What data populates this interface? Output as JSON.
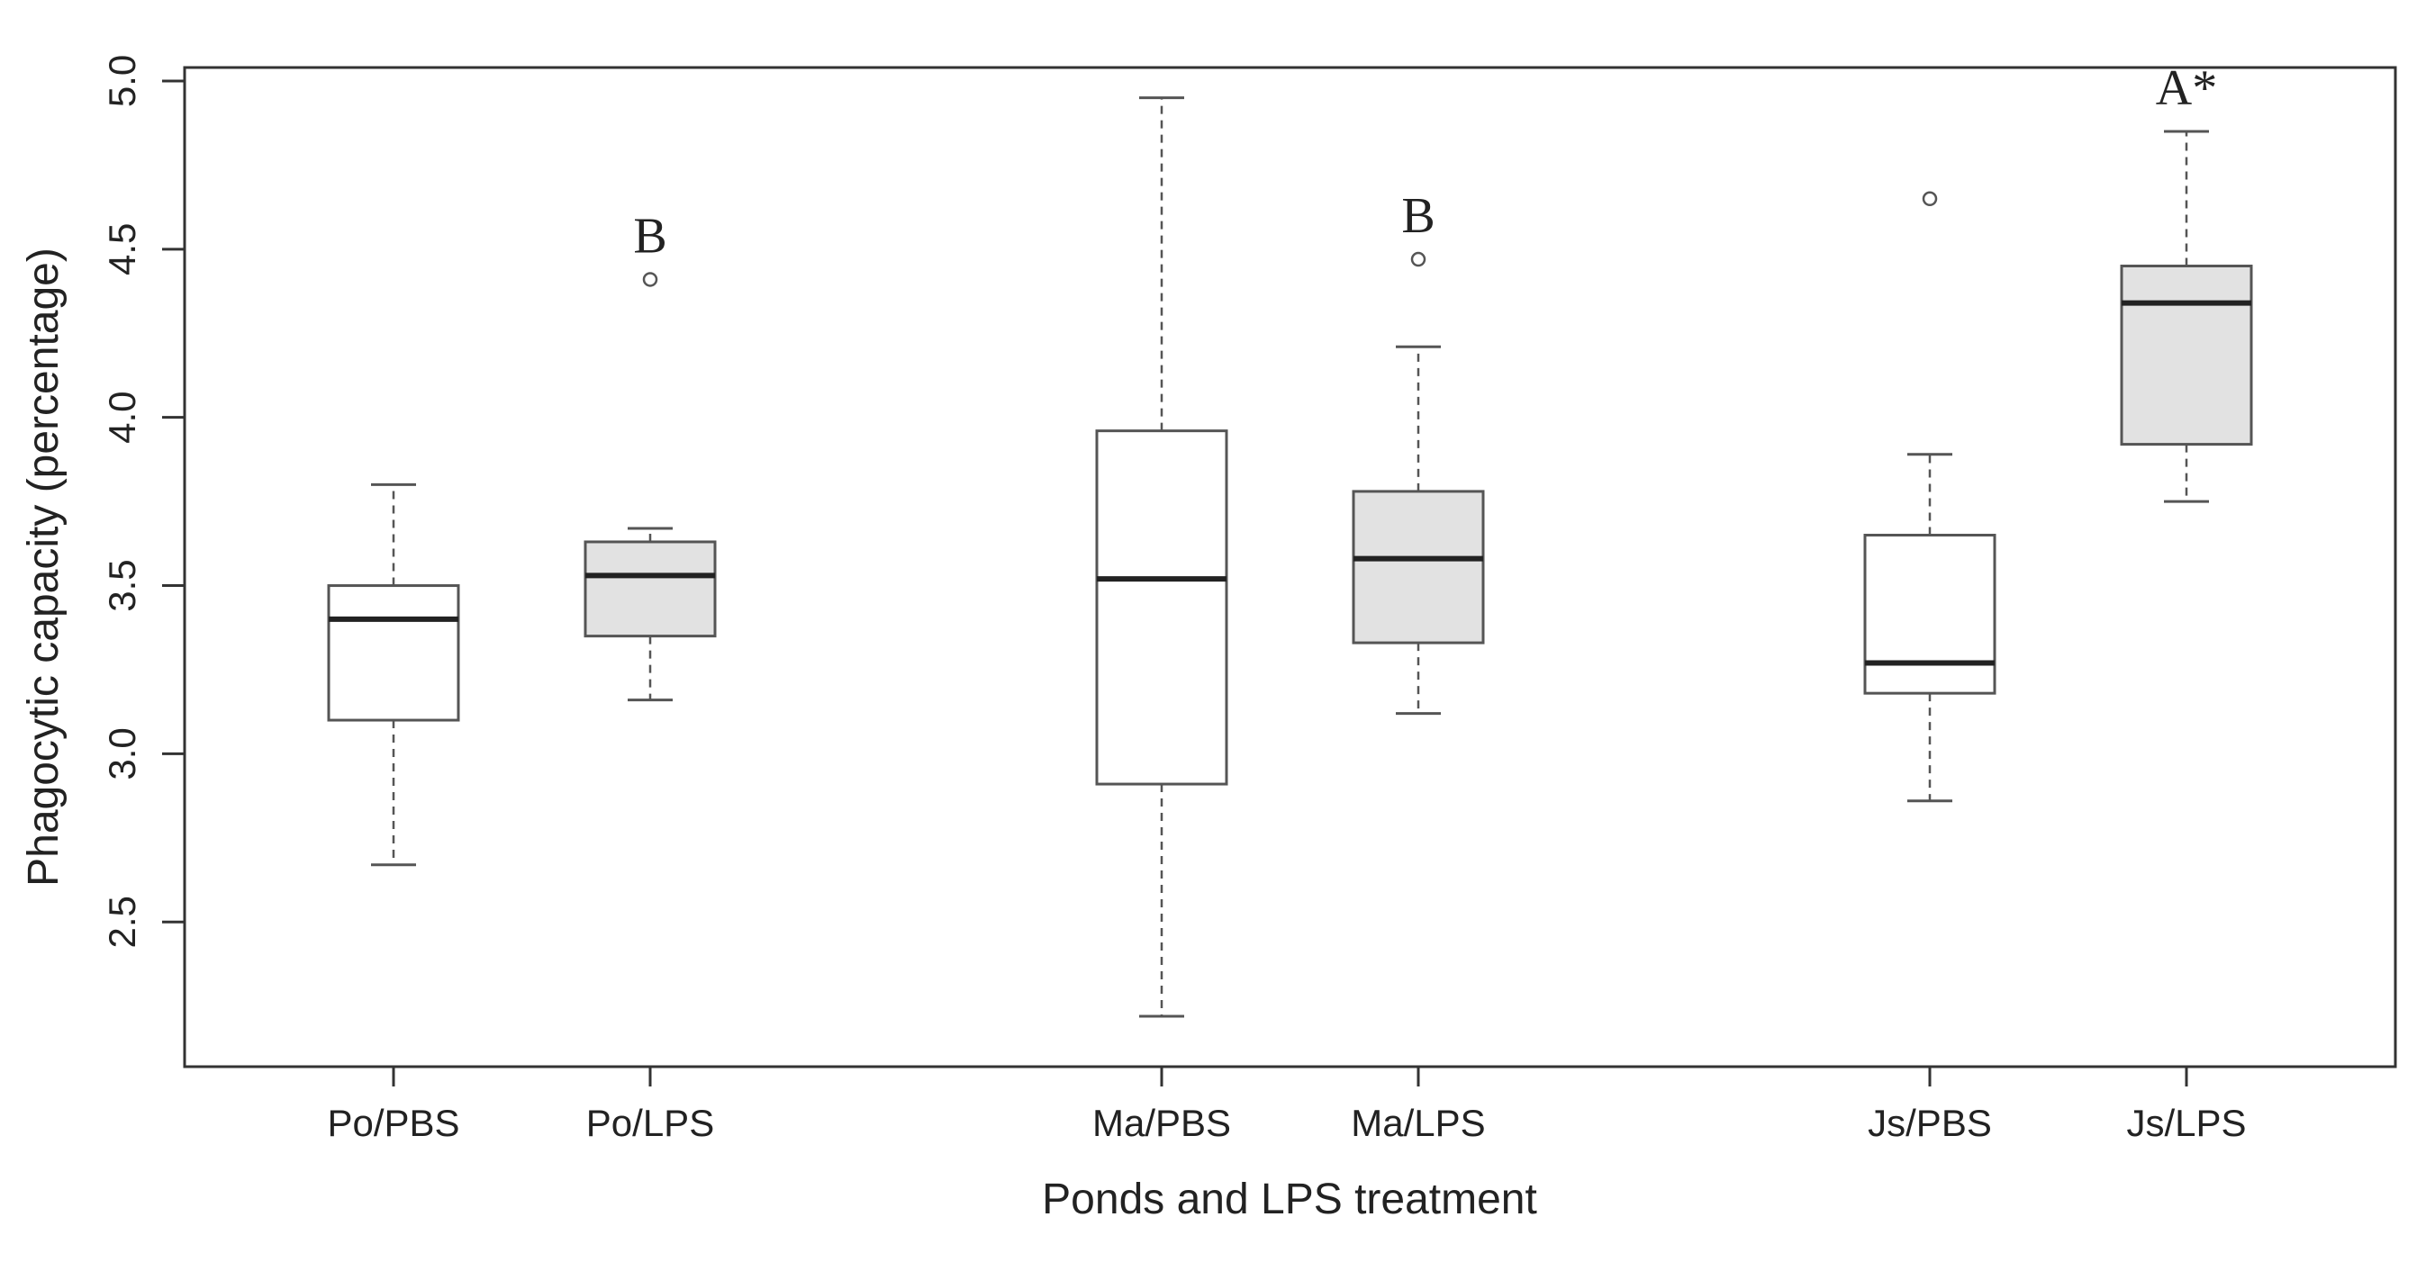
{
  "chart_data": {
    "type": "boxplot",
    "title": "",
    "xlabel": "Ponds and LPS treatment",
    "ylabel": "Phagocytic capacity (percentage)",
    "ylim": [
      2.07,
      5.04
    ],
    "yticks": [
      "2.5",
      "3.0",
      "3.5",
      "4.0",
      "4.5",
      "5.0"
    ],
    "grid": false,
    "legend": "none",
    "colors": {
      "pbs_fill": "#ffffff",
      "lps_fill": "#e2e2e2",
      "stroke": "#555555",
      "median": "#222222"
    },
    "categories": [
      "Po/PBS",
      "Po/LPS",
      "Ma/PBS",
      "Ma/LPS",
      "Js/PBS",
      "Js/LPS"
    ],
    "boxes": [
      {
        "category": "Po/PBS",
        "min": 2.67,
        "q1": 3.1,
        "median": 3.4,
        "q3": 3.5,
        "max": 3.8,
        "outliers": [],
        "group": "pbs",
        "annotation": ""
      },
      {
        "category": "Po/LPS",
        "min": 3.16,
        "q1": 3.35,
        "median": 3.53,
        "q3": 3.63,
        "max": 3.67,
        "outliers": [
          4.41
        ],
        "group": "lps",
        "annotation": "B"
      },
      {
        "category": "Ma/PBS",
        "min": 2.22,
        "q1": 2.91,
        "median": 3.52,
        "q3": 3.96,
        "max": 4.95,
        "outliers": [],
        "group": "pbs",
        "annotation": ""
      },
      {
        "category": "Ma/LPS",
        "min": 3.12,
        "q1": 3.33,
        "median": 3.58,
        "q3": 3.78,
        "max": 4.21,
        "outliers": [
          4.47
        ],
        "group": "lps",
        "annotation": "B"
      },
      {
        "category": "Js/PBS",
        "min": 2.86,
        "q1": 3.18,
        "median": 3.27,
        "q3": 3.65,
        "max": 3.89,
        "outliers": [
          4.65
        ],
        "group": "pbs",
        "annotation": ""
      },
      {
        "category": "Js/LPS",
        "min": 3.75,
        "q1": 3.92,
        "median": 4.34,
        "q3": 4.45,
        "max": 4.85,
        "outliers": [],
        "group": "lps",
        "annotation": "A*"
      }
    ]
  }
}
